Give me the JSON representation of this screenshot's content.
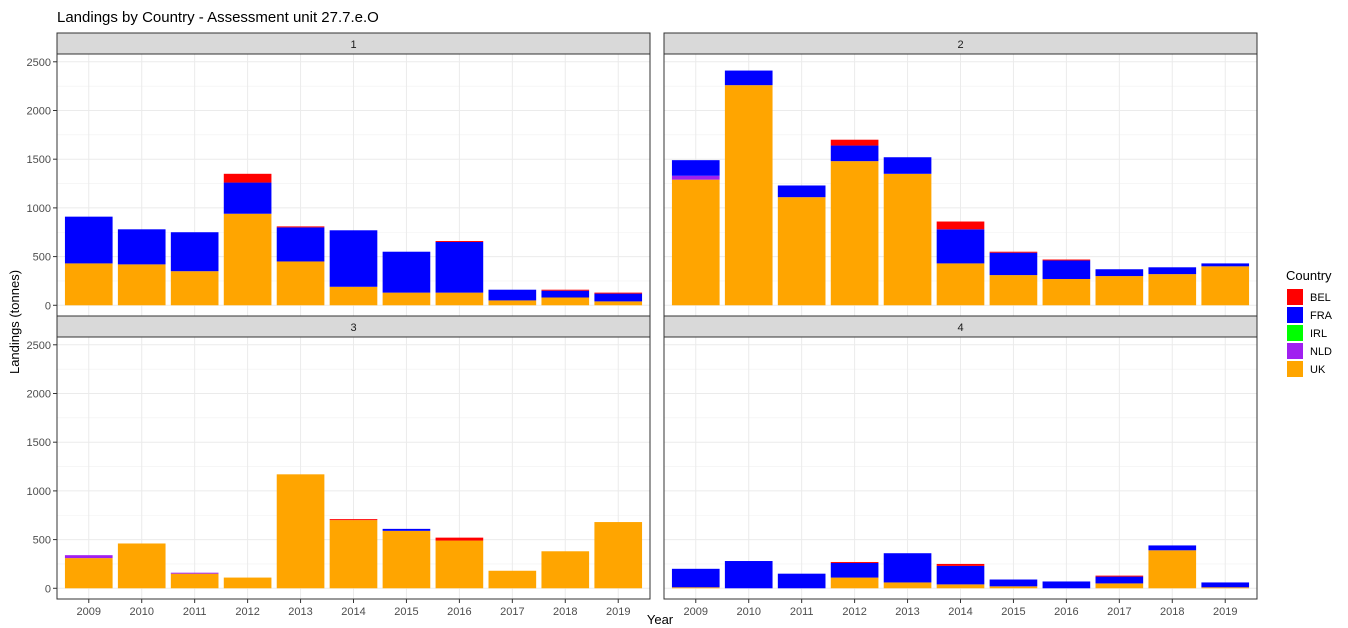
{
  "chart_data": {
    "type": "bar",
    "stacked": true,
    "title": "Landings by Country - Assessment unit 27.7.e.O",
    "xlabel": "Year",
    "ylabel": "Landings (tonnes)",
    "ylim": [
      0,
      2500
    ],
    "yticks": [
      0,
      500,
      1000,
      1500,
      2000,
      2500
    ],
    "grid": true,
    "legend_position": "right",
    "legend_title": "Country",
    "categories": [
      "2009",
      "2010",
      "2011",
      "2012",
      "2013",
      "2014",
      "2015",
      "2016",
      "2017",
      "2018",
      "2019"
    ],
    "countries": [
      {
        "code": "BEL",
        "color": "#ff0000"
      },
      {
        "code": "FRA",
        "color": "#0000ff"
      },
      {
        "code": "IRL",
        "color": "#00ff00"
      },
      {
        "code": "NLD",
        "color": "#a020f0"
      },
      {
        "code": "UK",
        "color": "#ffa500"
      }
    ],
    "panels": [
      {
        "label": "1",
        "series": {
          "UK": [
            430,
            420,
            350,
            940,
            450,
            190,
            130,
            130,
            50,
            80,
            40
          ],
          "NLD": [
            0,
            0,
            0,
            0,
            0,
            0,
            0,
            0,
            0,
            0,
            0
          ],
          "IRL": [
            0,
            0,
            0,
            0,
            0,
            0,
            0,
            0,
            0,
            0,
            0
          ],
          "FRA": [
            480,
            360,
            400,
            320,
            350,
            580,
            420,
            520,
            110,
            70,
            80
          ],
          "BEL": [
            0,
            0,
            0,
            90,
            10,
            0,
            0,
            10,
            0,
            10,
            10
          ]
        }
      },
      {
        "label": "2",
        "series": {
          "UK": [
            1290,
            2260,
            1110,
            1480,
            1350,
            430,
            310,
            270,
            300,
            320,
            400
          ],
          "NLD": [
            40,
            0,
            0,
            0,
            0,
            0,
            0,
            0,
            0,
            0,
            0
          ],
          "IRL": [
            0,
            0,
            0,
            0,
            0,
            0,
            0,
            0,
            0,
            0,
            0
          ],
          "FRA": [
            160,
            150,
            120,
            160,
            170,
            350,
            230,
            190,
            70,
            70,
            30
          ],
          "BEL": [
            0,
            0,
            0,
            60,
            0,
            80,
            10,
            10,
            0,
            0,
            0
          ]
        }
      },
      {
        "label": "3",
        "series": {
          "UK": [
            310,
            460,
            150,
            110,
            1170,
            700,
            590,
            490,
            180,
            380,
            680
          ],
          "NLD": [
            30,
            0,
            10,
            0,
            0,
            0,
            0,
            0,
            0,
            0,
            0
          ],
          "IRL": [
            0,
            0,
            0,
            0,
            0,
            0,
            0,
            0,
            0,
            0,
            0
          ],
          "FRA": [
            0,
            0,
            0,
            0,
            0,
            0,
            20,
            0,
            0,
            0,
            0
          ],
          "BEL": [
            0,
            0,
            0,
            0,
            0,
            10,
            0,
            30,
            0,
            0,
            0
          ]
        }
      },
      {
        "label": "4",
        "series": {
          "UK": [
            10,
            0,
            0,
            110,
            60,
            40,
            20,
            0,
            50,
            390,
            10
          ],
          "NLD": [
            0,
            0,
            0,
            0,
            0,
            0,
            0,
            0,
            0,
            0,
            0
          ],
          "IRL": [
            0,
            0,
            0,
            0,
            0,
            0,
            0,
            0,
            0,
            0,
            0
          ],
          "FRA": [
            190,
            280,
            150,
            150,
            300,
            190,
            70,
            70,
            70,
            50,
            50
          ],
          "BEL": [
            0,
            0,
            0,
            10,
            0,
            20,
            0,
            0,
            10,
            0,
            0
          ]
        }
      }
    ]
  }
}
